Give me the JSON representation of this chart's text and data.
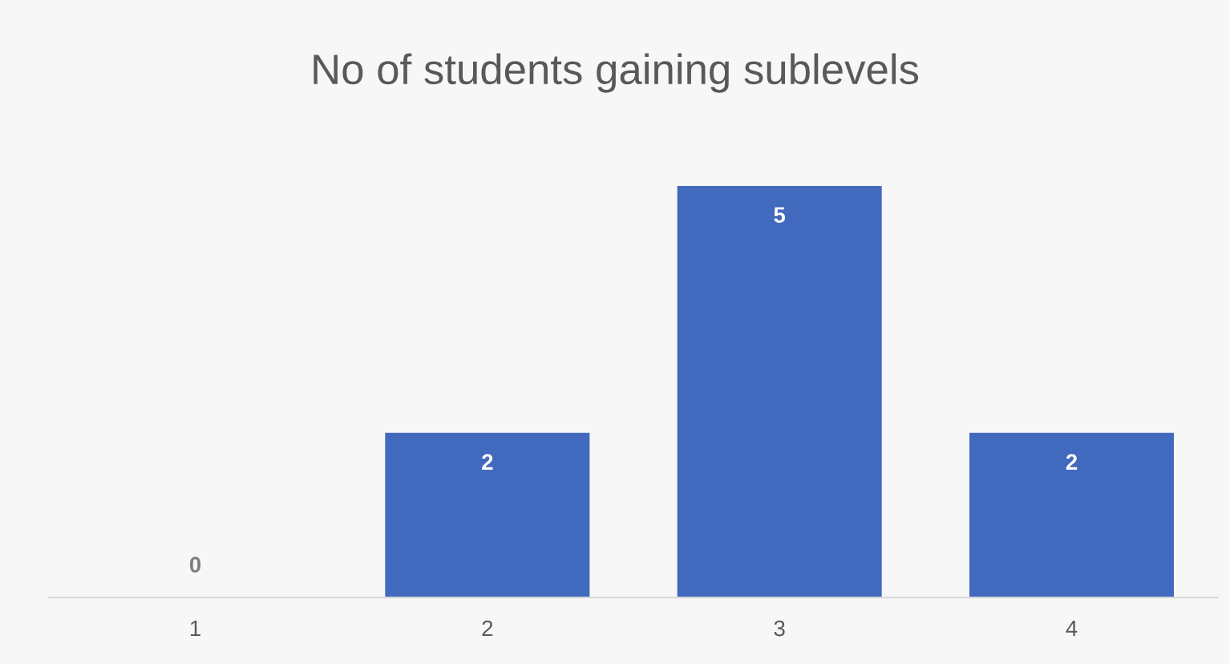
{
  "chart_data": {
    "type": "bar",
    "title": "No of students gaining sublevels",
    "categories": [
      "1",
      "2",
      "3",
      "4"
    ],
    "values": [
      0,
      2,
      5,
      2
    ],
    "color": "#4169be",
    "data_labels": true,
    "grid": false,
    "legend": false
  }
}
